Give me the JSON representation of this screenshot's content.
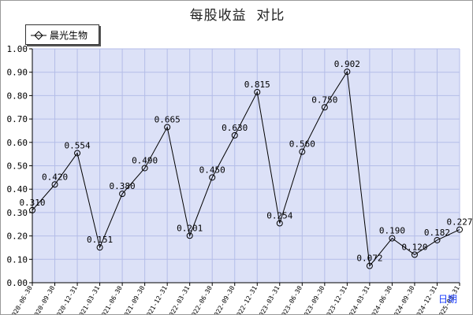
{
  "chart_data": {
    "type": "line",
    "title": "每股收益  对比",
    "xlabel": "日期",
    "ylabel": "",
    "ylim": [
      0,
      1.0
    ],
    "yticks": [
      "0.00",
      "0.10",
      "0.20",
      "0.30",
      "0.40",
      "0.50",
      "0.60",
      "0.70",
      "0.80",
      "0.90",
      "1.00"
    ],
    "grid": true,
    "legend_position": "top-left",
    "categories": [
      "2020-06-30",
      "2020-09-30",
      "2020-12-31",
      "2021-03-31",
      "2021-06-30",
      "2021-09-30",
      "2021-12-31",
      "2022-03-31",
      "2022-06-30",
      "2022-09-30",
      "2022-12-31",
      "2023-03-31",
      "2023-06-30",
      "2023-09-30",
      "2023-12-31",
      "2024-03-31",
      "2024-06-30",
      "2024-09-30",
      "2024-12-31",
      "2025-03-31"
    ],
    "series": [
      {
        "name": "晨光生物",
        "values": [
          0.31,
          0.42,
          0.554,
          0.151,
          0.38,
          0.49,
          0.665,
          0.201,
          0.45,
          0.63,
          0.815,
          0.254,
          0.56,
          0.75,
          0.902,
          0.072,
          0.19,
          0.12,
          0.182,
          0.227
        ],
        "labels": [
          "0.310",
          "0.420",
          "0.554",
          "0.151",
          "0.380",
          "0.490",
          "0.665",
          "0.201",
          "0.450",
          "0.630",
          "0.815",
          "0.254",
          "0.560",
          "0.750",
          "0.902",
          "0.072",
          "0.190",
          "0.120",
          "0.182",
          "0.227"
        ]
      }
    ],
    "colors": {
      "plot_background": "#dce1f7",
      "grid": "#b4bde8",
      "line": "#000000",
      "marker": "#000000"
    }
  }
}
